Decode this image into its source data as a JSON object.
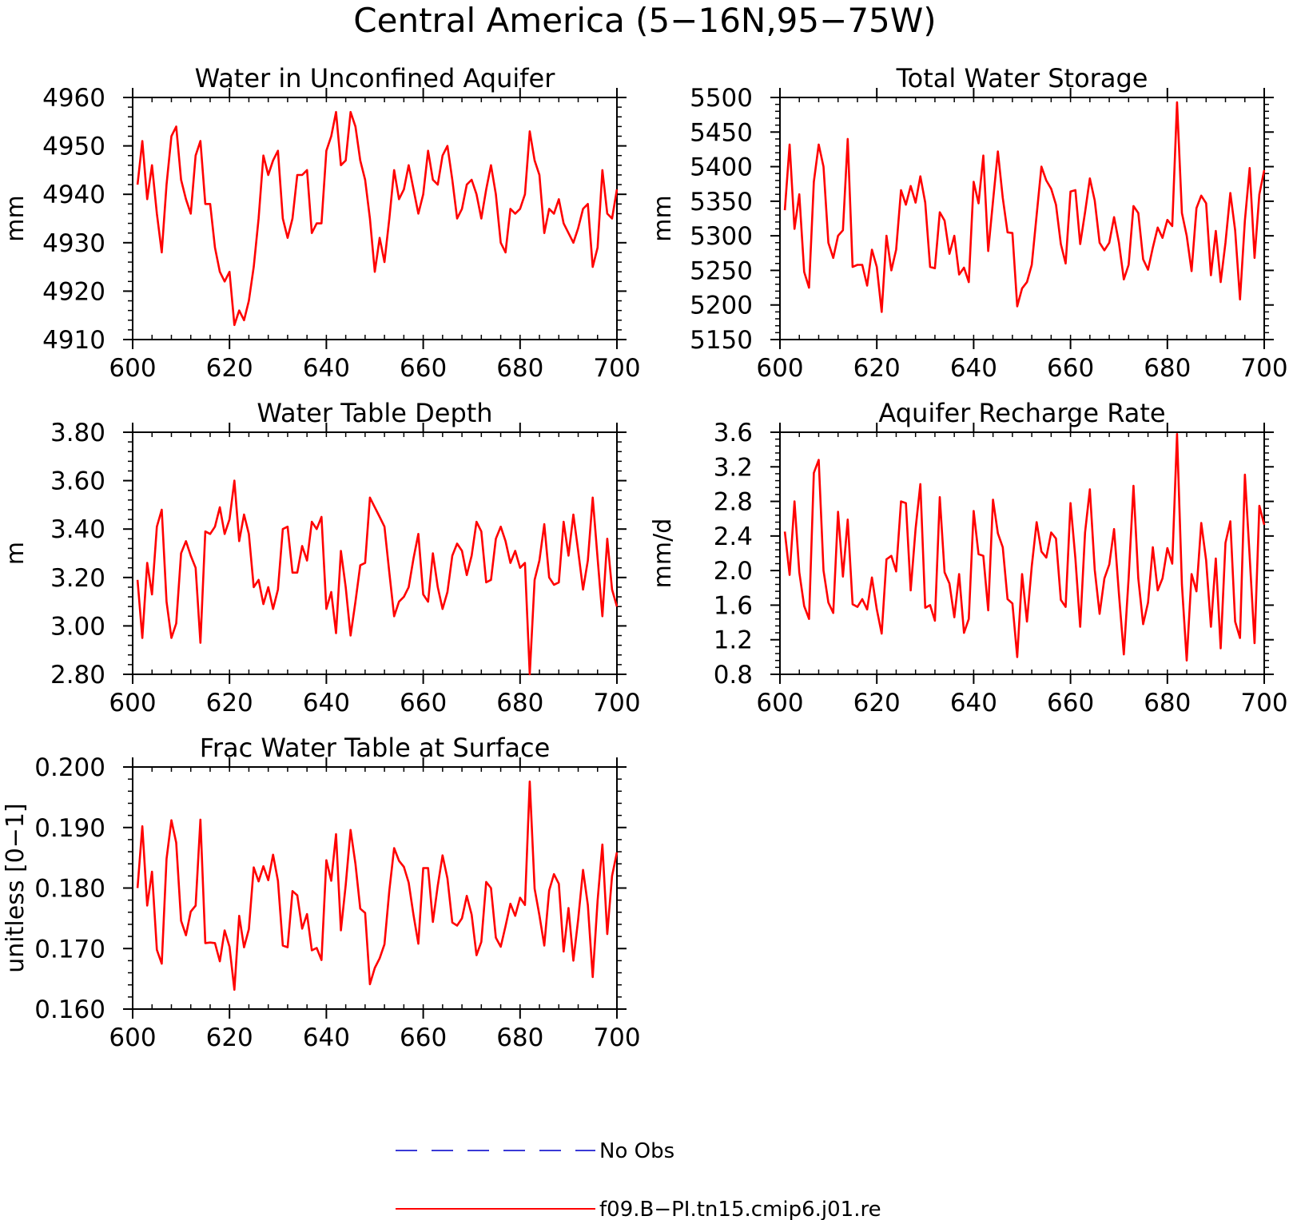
{
  "figure": {
    "title": "Central America (5−16N,95−75W)"
  },
  "legend": {
    "entries": [
      {
        "label": "No Obs",
        "color": "#3a3ad6",
        "dash": true
      },
      {
        "label": "f09.B−PI.tn15.cmip6.j01.re",
        "color": "#ff0000",
        "dash": false
      }
    ]
  },
  "chart_data": [
    {
      "type": "line",
      "title": "Water in Unconfined Aquifer",
      "ylabel": "mm",
      "xlim": [
        600,
        700
      ],
      "ylim": [
        4910,
        4960
      ],
      "xticks": [
        600,
        620,
        640,
        660,
        680,
        700
      ],
      "yticks": [
        4910,
        4920,
        4930,
        4940,
        4950,
        4960
      ],
      "ytick_labels": [
        "4910",
        "4920",
        "4930",
        "4940",
        "4950",
        "4960"
      ],
      "grid": false,
      "color": "#ff0000",
      "x": [
        601,
        602,
        603,
        604,
        605,
        606,
        607,
        608,
        609,
        610,
        611,
        612,
        613,
        614,
        615,
        616,
        617,
        618,
        619,
        620,
        621,
        622,
        623,
        624,
        625,
        626,
        627,
        628,
        629,
        630,
        631,
        632,
        633,
        634,
        635,
        636,
        637,
        638,
        639,
        640,
        641,
        642,
        643,
        644,
        645,
        646,
        647,
        648,
        649,
        650,
        651,
        652,
        653,
        654,
        655,
        656,
        657,
        658,
        659,
        660,
        661,
        662,
        663,
        664,
        665,
        666,
        667,
        668,
        669,
        670,
        671,
        672,
        673,
        674,
        675,
        676,
        677,
        678,
        679,
        680,
        681,
        682,
        683,
        684,
        685,
        686,
        687,
        688,
        689,
        690,
        691,
        692,
        693,
        694,
        695,
        696,
        697,
        698,
        699,
        700
      ],
      "y": [
        4942,
        4951,
        4939,
        4946,
        4936,
        4928,
        4942,
        4952,
        4954,
        4943,
        4939,
        4936,
        4948,
        4951,
        4938,
        4938,
        4929,
        4924,
        4922,
        4924,
        4913,
        4916,
        4914,
        4918,
        4925,
        4935,
        4948,
        4944,
        4947,
        4949,
        4935,
        4931,
        4935,
        4944,
        4944,
        4945,
        4932,
        4934,
        4934,
        4949,
        4952,
        4957,
        4946,
        4947,
        4957,
        4954,
        4947,
        4943,
        4935,
        4924,
        4931,
        4926,
        4935,
        4945,
        4939,
        4941,
        4946,
        4941,
        4936,
        4940,
        4949,
        4943,
        4942,
        4948,
        4950,
        4943,
        4935,
        4937,
        4942,
        4943,
        4940,
        4935,
        4941,
        4946,
        4940,
        4930,
        4928,
        4937,
        4936,
        4937,
        4940,
        4953,
        4947,
        4944,
        4932,
        4937,
        4936,
        4939,
        4934,
        4932,
        4930,
        4933,
        4937,
        4938,
        4925,
        4929,
        4945,
        4936,
        4935,
        4941
      ]
    },
    {
      "type": "line",
      "title": "Total Water Storage",
      "ylabel": "mm",
      "xlim": [
        600,
        700
      ],
      "ylim": [
        5150,
        5500
      ],
      "xticks": [
        600,
        620,
        640,
        660,
        680,
        700
      ],
      "yticks": [
        5150,
        5200,
        5250,
        5300,
        5350,
        5400,
        5450,
        5500
      ],
      "ytick_labels": [
        "5150",
        "5200",
        "5250",
        "5300",
        "5350",
        "5400",
        "5450",
        "5500"
      ],
      "grid": false,
      "color": "#ff0000",
      "x": [
        601,
        602,
        603,
        604,
        605,
        606,
        607,
        608,
        609,
        610,
        611,
        612,
        613,
        614,
        615,
        616,
        617,
        618,
        619,
        620,
        621,
        622,
        623,
        624,
        625,
        626,
        627,
        628,
        629,
        630,
        631,
        632,
        633,
        634,
        635,
        636,
        637,
        638,
        639,
        640,
        641,
        642,
        643,
        644,
        645,
        646,
        647,
        648,
        649,
        650,
        651,
        652,
        653,
        654,
        655,
        656,
        657,
        658,
        659,
        660,
        661,
        662,
        663,
        664,
        665,
        666,
        667,
        668,
        669,
        670,
        671,
        672,
        673,
        674,
        675,
        676,
        677,
        678,
        679,
        680,
        681,
        682,
        683,
        684,
        685,
        686,
        687,
        688,
        689,
        690,
        691,
        692,
        693,
        694,
        695,
        696,
        697,
        698,
        699,
        700
      ],
      "y": [
        5337,
        5432,
        5310,
        5360,
        5248,
        5225,
        5378,
        5432,
        5400,
        5290,
        5268,
        5300,
        5308,
        5440,
        5255,
        5258,
        5258,
        5228,
        5280,
        5255,
        5190,
        5300,
        5250,
        5280,
        5366,
        5345,
        5372,
        5348,
        5386,
        5348,
        5255,
        5253,
        5334,
        5322,
        5274,
        5300,
        5244,
        5254,
        5233,
        5378,
        5347,
        5416,
        5278,
        5350,
        5422,
        5355,
        5305,
        5304,
        5198,
        5224,
        5233,
        5258,
        5330,
        5400,
        5380,
        5368,
        5345,
        5288,
        5260,
        5364,
        5366,
        5288,
        5334,
        5383,
        5351,
        5290,
        5279,
        5290,
        5327,
        5290,
        5237,
        5258,
        5343,
        5333,
        5266,
        5251,
        5283,
        5312,
        5297,
        5323,
        5314,
        5493,
        5333,
        5300,
        5249,
        5340,
        5358,
        5347,
        5243,
        5307,
        5233,
        5290,
        5362,
        5308,
        5208,
        5322,
        5398,
        5268,
        5360,
        5395
      ]
    },
    {
      "type": "line",
      "title": "Water Table Depth",
      "ylabel": "m",
      "xlim": [
        600,
        700
      ],
      "ylim": [
        2.8,
        3.8
      ],
      "xticks": [
        600,
        620,
        640,
        660,
        680,
        700
      ],
      "yticks": [
        2.8,
        3.0,
        3.2,
        3.4,
        3.6,
        3.8
      ],
      "ytick_labels": [
        "2.80",
        "3.00",
        "3.20",
        "3.40",
        "3.60",
        "3.80"
      ],
      "grid": false,
      "color": "#ff0000",
      "x": [
        601,
        602,
        603,
        604,
        605,
        606,
        607,
        608,
        609,
        610,
        611,
        612,
        613,
        614,
        615,
        616,
        617,
        618,
        619,
        620,
        621,
        622,
        623,
        624,
        625,
        626,
        627,
        628,
        629,
        630,
        631,
        632,
        633,
        634,
        635,
        636,
        637,
        638,
        639,
        640,
        641,
        642,
        643,
        644,
        645,
        646,
        647,
        648,
        649,
        650,
        651,
        652,
        653,
        654,
        655,
        656,
        657,
        658,
        659,
        660,
        661,
        662,
        663,
        664,
        665,
        666,
        667,
        668,
        669,
        670,
        671,
        672,
        673,
        674,
        675,
        676,
        677,
        678,
        679,
        680,
        681,
        682,
        683,
        684,
        685,
        686,
        687,
        688,
        689,
        690,
        691,
        692,
        693,
        694,
        695,
        696,
        697,
        698,
        699,
        700
      ],
      "y": [
        3.19,
        2.95,
        3.26,
        3.13,
        3.41,
        3.48,
        3.1,
        2.95,
        3.01,
        3.3,
        3.35,
        3.29,
        3.24,
        2.93,
        3.39,
        3.38,
        3.41,
        3.49,
        3.38,
        3.44,
        3.6,
        3.35,
        3.46,
        3.38,
        3.16,
        3.19,
        3.09,
        3.16,
        3.07,
        3.15,
        3.4,
        3.41,
        3.22,
        3.22,
        3.33,
        3.27,
        3.43,
        3.4,
        3.45,
        3.07,
        3.14,
        2.97,
        3.31,
        3.16,
        2.96,
        3.1,
        3.25,
        3.26,
        3.53,
        3.49,
        3.45,
        3.41,
        3.22,
        3.04,
        3.1,
        3.12,
        3.16,
        3.28,
        3.38,
        3.13,
        3.1,
        3.3,
        3.16,
        3.07,
        3.14,
        3.29,
        3.34,
        3.31,
        3.21,
        3.29,
        3.43,
        3.39,
        3.18,
        3.19,
        3.36,
        3.41,
        3.35,
        3.26,
        3.31,
        3.24,
        3.26,
        2.8,
        3.19,
        3.27,
        3.42,
        3.2,
        3.17,
        3.18,
        3.43,
        3.29,
        3.46,
        3.31,
        3.15,
        3.27,
        3.53,
        3.28,
        3.04,
        3.36,
        3.15,
        3.08
      ]
    },
    {
      "type": "line",
      "title": "Aquifer Recharge Rate",
      "ylabel": "mm/d",
      "xlim": [
        600,
        700
      ],
      "ylim": [
        0.8,
        3.6
      ],
      "xticks": [
        600,
        620,
        640,
        660,
        680,
        700
      ],
      "yticks": [
        0.8,
        1.2,
        1.6,
        2.0,
        2.4,
        2.8,
        3.2,
        3.6
      ],
      "ytick_labels": [
        "0.8",
        "1.2",
        "1.6",
        "2.0",
        "2.4",
        "2.8",
        "3.2",
        "3.6"
      ],
      "grid": false,
      "color": "#ff0000",
      "x": [
        601,
        602,
        603,
        604,
        605,
        606,
        607,
        608,
        609,
        610,
        611,
        612,
        613,
        614,
        615,
        616,
        617,
        618,
        619,
        620,
        621,
        622,
        623,
        624,
        625,
        626,
        627,
        628,
        629,
        630,
        631,
        632,
        633,
        634,
        635,
        636,
        637,
        638,
        639,
        640,
        641,
        642,
        643,
        644,
        645,
        646,
        647,
        648,
        649,
        650,
        651,
        652,
        653,
        654,
        655,
        656,
        657,
        658,
        659,
        660,
        661,
        662,
        663,
        664,
        665,
        666,
        667,
        668,
        669,
        670,
        671,
        672,
        673,
        674,
        675,
        676,
        677,
        678,
        679,
        680,
        681,
        682,
        683,
        684,
        685,
        686,
        687,
        688,
        689,
        690,
        691,
        692,
        693,
        694,
        695,
        696,
        697,
        698,
        699,
        700
      ],
      "y": [
        2.45,
        1.95,
        2.8,
        1.98,
        1.59,
        1.44,
        3.13,
        3.28,
        2.0,
        1.63,
        1.51,
        2.68,
        1.93,
        2.59,
        1.61,
        1.58,
        1.67,
        1.55,
        1.92,
        1.55,
        1.27,
        2.13,
        2.17,
        1.99,
        2.8,
        2.78,
        1.77,
        2.48,
        3.0,
        1.57,
        1.6,
        1.42,
        2.85,
        1.98,
        1.85,
        1.46,
        1.96,
        1.28,
        1.44,
        2.69,
        2.19,
        2.17,
        1.54,
        2.82,
        2.43,
        2.27,
        1.67,
        1.62,
        1.0,
        1.96,
        1.41,
        2.05,
        2.56,
        2.22,
        2.15,
        2.44,
        2.37,
        1.66,
        1.58,
        2.78,
        2.14,
        1.35,
        2.44,
        2.94,
        2.01,
        1.5,
        1.91,
        2.07,
        2.48,
        1.73,
        1.03,
        1.91,
        2.98,
        1.91,
        1.38,
        1.63,
        2.27,
        1.77,
        1.91,
        2.26,
        2.08,
        3.58,
        1.84,
        0.96,
        1.96,
        1.76,
        2.55,
        2.12,
        1.35,
        2.14,
        1.1,
        2.32,
        2.57,
        1.41,
        1.22,
        3.11,
        2.16,
        1.16,
        2.75,
        2.53
      ]
    },
    {
      "type": "line",
      "title": "Frac Water Table at Surface",
      "ylabel": "unitless [0−1]",
      "xlim": [
        600,
        700
      ],
      "ylim": [
        0.16,
        0.2
      ],
      "xticks": [
        600,
        620,
        640,
        660,
        680,
        700
      ],
      "yticks": [
        0.16,
        0.17,
        0.18,
        0.19,
        0.2
      ],
      "ytick_labels": [
        "0.160",
        "0.170",
        "0.180",
        "0.190",
        "0.200"
      ],
      "grid": false,
      "color": "#ff0000",
      "x": [
        601,
        602,
        603,
        604,
        605,
        606,
        607,
        608,
        609,
        610,
        611,
        612,
        613,
        614,
        615,
        616,
        617,
        618,
        619,
        620,
        621,
        622,
        623,
        624,
        625,
        626,
        627,
        628,
        629,
        630,
        631,
        632,
        633,
        634,
        635,
        636,
        637,
        638,
        639,
        640,
        641,
        642,
        643,
        644,
        645,
        646,
        647,
        648,
        649,
        650,
        651,
        652,
        653,
        654,
        655,
        656,
        657,
        658,
        659,
        660,
        661,
        662,
        663,
        664,
        665,
        666,
        667,
        668,
        669,
        670,
        671,
        672,
        673,
        674,
        675,
        676,
        677,
        678,
        679,
        680,
        681,
        682,
        683,
        684,
        685,
        686,
        687,
        688,
        689,
        690,
        691,
        692,
        693,
        694,
        695,
        696,
        697,
        698,
        699,
        700
      ],
      "y": [
        0.18,
        0.1902,
        0.1771,
        0.1827,
        0.1698,
        0.1675,
        0.1848,
        0.1912,
        0.1875,
        0.1746,
        0.1722,
        0.1761,
        0.1771,
        0.1913,
        0.1709,
        0.171,
        0.1709,
        0.1679,
        0.173,
        0.1703,
        0.1632,
        0.1754,
        0.1702,
        0.1732,
        0.1834,
        0.1811,
        0.1836,
        0.1813,
        0.1855,
        0.1812,
        0.1705,
        0.1702,
        0.1795,
        0.1788,
        0.1733,
        0.1757,
        0.1697,
        0.1701,
        0.1681,
        0.1846,
        0.1812,
        0.1889,
        0.173,
        0.1805,
        0.1896,
        0.184,
        0.1766,
        0.1759,
        0.1641,
        0.1668,
        0.1684,
        0.1707,
        0.1796,
        0.1866,
        0.1845,
        0.1835,
        0.1809,
        0.1755,
        0.1708,
        0.1833,
        0.1833,
        0.1744,
        0.1804,
        0.1854,
        0.1816,
        0.1743,
        0.1738,
        0.175,
        0.1787,
        0.1756,
        0.1689,
        0.1711,
        0.181,
        0.18,
        0.1718,
        0.1703,
        0.1737,
        0.1774,
        0.1754,
        0.1784,
        0.1772,
        0.1976,
        0.1799,
        0.1755,
        0.1705,
        0.1796,
        0.1823,
        0.1807,
        0.1695,
        0.1767,
        0.168,
        0.1748,
        0.183,
        0.1772,
        0.1653,
        0.1779,
        0.1872,
        0.1724,
        0.182,
        0.1859
      ]
    }
  ]
}
